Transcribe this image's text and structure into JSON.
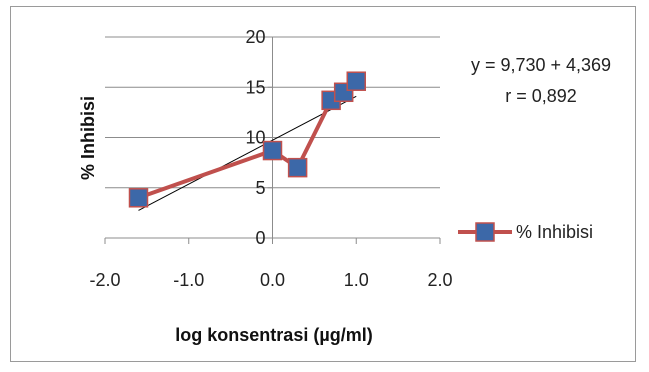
{
  "chart_data": {
    "type": "line",
    "title": "",
    "xlabel": "log konsentrasi (µg/ml)",
    "ylabel": "% Inhibisi",
    "xlim": [
      -2.0,
      2.0
    ],
    "ylim": [
      0,
      20
    ],
    "x_ticks": [
      "-2.0",
      "-1.0",
      "0.0",
      "1.0",
      "2.0"
    ],
    "y_ticks": [
      "0",
      "5",
      "10",
      "15",
      "20"
    ],
    "grid": "horizontal",
    "legend_position": "right",
    "series": [
      {
        "name": "% Inhibisi",
        "color": "#c0504d",
        "marker_color": "#3c68a8",
        "x": [
          -1.6,
          0.0,
          0.3,
          0.7,
          0.85,
          1.0
        ],
        "y": [
          4.0,
          8.7,
          7.0,
          13.7,
          14.5,
          15.6
        ]
      }
    ],
    "trendline": {
      "intercept": 9.73,
      "slope": 4.369,
      "x_range": [
        -1.6,
        1.0
      ],
      "color": "#000000"
    },
    "annotations": [
      "y = 9,730 + 4,369",
      "r = 0,892"
    ]
  }
}
